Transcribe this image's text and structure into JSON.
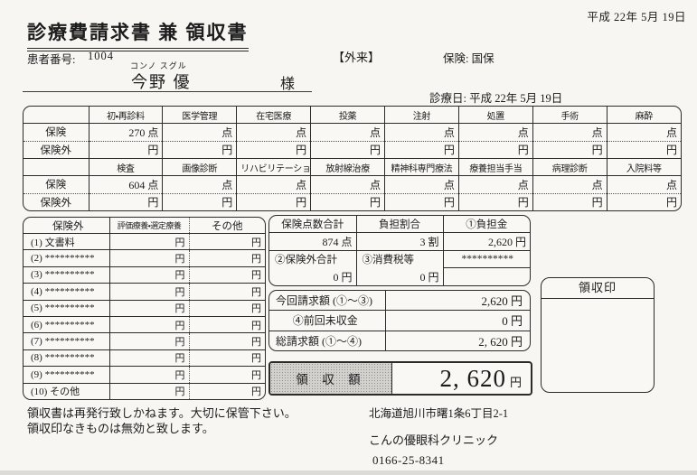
{
  "header": {
    "print_date": "平成 22年 5月 19日",
    "title": "診療費請求書 兼 領収書",
    "patient_no_label": "患者番号:",
    "patient_no": "1004",
    "visit_type": "【外来】",
    "insurance": "保険: 国保",
    "furigana": "コンノ スグル",
    "patient_name": "今野 優",
    "honorific": "様",
    "visit_date": "診療日: 平成 22年 5月 19日"
  },
  "points_table": {
    "row_label_hoken": "保険",
    "row_label_hokengai": "保険外",
    "unit_point": "点",
    "unit_yen": "円",
    "groups": [
      {
        "columns": [
          "初・再診料",
          "医学管理",
          "在宅医療",
          "投薬",
          "注射",
          "処置",
          "手術",
          "麻酔"
        ],
        "hoken_values": [
          "270",
          "",
          "",
          "",
          "",
          "",
          "",
          ""
        ],
        "hokengai_values": [
          "",
          "",
          "",
          "",
          "",
          "",
          "",
          ""
        ]
      },
      {
        "columns": [
          "検査",
          "画像診断",
          "リハビリテーション",
          "放射線治療",
          "精神科専門療法",
          "療養担当手当",
          "病理診断",
          "入院料等"
        ],
        "hoken_values": [
          "604",
          "",
          "",
          "",
          "",
          "",
          "",
          ""
        ],
        "hokengai_values": [
          "",
          "",
          "",
          "",
          "",
          "",
          "",
          ""
        ]
      }
    ]
  },
  "extra_table": {
    "headers": [
      "保険外",
      "評価療養・選定療養",
      "その他"
    ],
    "unit": "円",
    "items": [
      "(1) 文書料",
      "(2) **********",
      "(3) **********",
      "(4) **********",
      "(5) **********",
      "(6) **********",
      "(7) **********",
      "(8) **********",
      "(9) **********",
      "(10) その他"
    ]
  },
  "summary_table": {
    "header1": [
      "保険点数合計",
      "負担割合",
      "①負担金"
    ],
    "values1": [
      {
        "v": "874",
        "u": "点"
      },
      {
        "v": "3",
        "u": "割"
      },
      {
        "v": "2,620",
        "u": "円"
      }
    ],
    "header2": [
      "②保険外合計",
      "③消費税等",
      "**********"
    ],
    "values2": [
      {
        "v": "0",
        "u": "円"
      },
      {
        "v": "0",
        "u": "円"
      },
      {
        "v": "",
        "u": ""
      }
    ]
  },
  "billing_table": {
    "rows": [
      {
        "label": "今回請求額 (①～③)",
        "value": "2,620",
        "unit": "円"
      },
      {
        "label": "④前回未収金",
        "value": "0",
        "unit": "円"
      },
      {
        "label": "総請求額 (①～④)",
        "value": "2, 620",
        "unit": "円"
      }
    ]
  },
  "receipt_total": {
    "label": "領 収 額",
    "value": "2, 620",
    "unit": "円"
  },
  "stamp": {
    "label": "領収印"
  },
  "footer": {
    "note1": "領収書は再発行致しかねます。大切に保管下さい。",
    "note2": "領収印なきものは無効と致します。",
    "address": "北海道旭川市曙1条6丁目2-1",
    "clinic_name": "こんの優眼科クリニック",
    "phone": "0166-25-8341"
  }
}
